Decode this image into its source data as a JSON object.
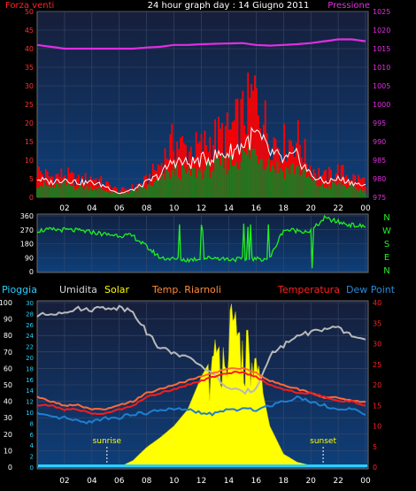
{
  "header": {
    "title": "24 hour graph day : 14 Giugno 2011",
    "left_label": "Forza venti",
    "right_label": "Pressione"
  },
  "colors": {
    "background": "#000000",
    "plot_top": "#1a2a55",
    "plot_bottom": "#0e3f7a",
    "grid": "#3a4a6a",
    "wind_gust": "#ff0000",
    "wind_avg": "#1f7a1f",
    "wind_line": "#ffffff",
    "pressure": "#e02ee0",
    "direction": "#22ee22",
    "rain_label": "#2ad0ff",
    "humidity": "#b8b8b8",
    "solar": "#ffff00",
    "riarnoli": "#ff6a3a",
    "temperature": "#ff1a1a",
    "dewpoint": "#1e7fd0"
  },
  "chart_data": [
    {
      "type": "area",
      "name": "wind_pressure",
      "x_ticks": [
        "02",
        "04",
        "06",
        "08",
        "10",
        "12",
        "14",
        "16",
        "18",
        "20",
        "22",
        "00"
      ],
      "left_ticks": [
        "0",
        "5",
        "10",
        "15",
        "20",
        "25",
        "30",
        "35",
        "40",
        "45",
        "50"
      ],
      "right_ticks": [
        "975",
        "980",
        "985",
        "990",
        "995",
        "1000",
        "1005",
        "1010",
        "1015",
        "1020",
        "1025"
      ],
      "left_ylim": [
        0,
        50
      ],
      "right_ylim": [
        975,
        1025
      ],
      "hours": [
        0,
        1,
        2,
        3,
        4,
        5,
        6,
        7,
        8,
        9,
        10,
        11,
        12,
        13,
        14,
        15,
        16,
        17,
        18,
        19,
        20,
        21,
        22,
        23,
        24
      ],
      "series": [
        {
          "key": "gust",
          "values": [
            8,
            6,
            7,
            5,
            6,
            4,
            2,
            3,
            5,
            10,
            17,
            14,
            15,
            18,
            19,
            24,
            31,
            18,
            16,
            18,
            9,
            6,
            8,
            6,
            5
          ]
        },
        {
          "key": "avg",
          "values": [
            4,
            3,
            4,
            3,
            3,
            2,
            1,
            2,
            3,
            5,
            8,
            7,
            8,
            9,
            10,
            12,
            14,
            10,
            8,
            9,
            5,
            3,
            4,
            3,
            2
          ]
        },
        {
          "key": "line",
          "values": [
            5,
            4,
            5,
            4,
            4,
            3,
            1,
            2,
            4,
            6,
            10,
            9,
            10,
            11,
            12,
            14,
            17,
            12,
            10,
            11,
            6,
            4,
            5,
            4,
            3
          ]
        },
        {
          "key": "pressure",
          "values": [
            1016,
            1015.5,
            1015,
            1015,
            1015,
            1015,
            1015,
            1015,
            1015.3,
            1015.5,
            1016,
            1016,
            1016.2,
            1016.3,
            1016.4,
            1016.5,
            1016,
            1015.8,
            1016,
            1016.2,
            1016.5,
            1017,
            1017.5,
            1017.5,
            1017
          ]
        }
      ]
    },
    {
      "type": "line",
      "name": "wind_direction",
      "x_ticks": [
        "02",
        "04",
        "06",
        "08",
        "10",
        "12",
        "14",
        "16",
        "18",
        "20",
        "22",
        "00"
      ],
      "y_ticks": [
        "360",
        "270",
        "180",
        "90",
        "0"
      ],
      "right_labels": [
        "N",
        "W",
        "S",
        "E",
        "N"
      ],
      "ylim": [
        0,
        360
      ],
      "hours": [
        0,
        1,
        2,
        3,
        4,
        5,
        6,
        7,
        8,
        9,
        10,
        11,
        12,
        13,
        14,
        15,
        16,
        17,
        18,
        19,
        20,
        21,
        22,
        23,
        24
      ],
      "values": [
        265,
        270,
        270,
        265,
        255,
        240,
        235,
        230,
        160,
        90,
        80,
        75,
        85,
        90,
        80,
        80,
        80,
        85,
        270,
        265,
        260,
        345,
        320,
        300,
        290
      ]
    },
    {
      "type": "area",
      "name": "temp_humidity_solar",
      "legend": [
        "Pioggia",
        "Umidita",
        "Solar",
        "Temp. Riarnoli",
        "Temperatura",
        "Dew Point"
      ],
      "x_ticks": [
        "02",
        "04",
        "06",
        "08",
        "10",
        "12",
        "14",
        "16",
        "18",
        "20",
        "22",
        "00"
      ],
      "left_ticks": [
        "0",
        "10",
        "20",
        "30",
        "40",
        "50",
        "60",
        "70",
        "80",
        "90",
        "100"
      ],
      "mid_ticks": [
        "0",
        "2",
        "4",
        "6",
        "8",
        "10",
        "12",
        "14",
        "16",
        "18",
        "20",
        "22",
        "24",
        "26",
        "28",
        "30"
      ],
      "right_ticks": [
        "0",
        "5",
        "10",
        "15",
        "20",
        "25",
        "30",
        "35",
        "40"
      ],
      "annotations": [
        "sunrise",
        "sunset"
      ],
      "hours": [
        0,
        1,
        2,
        3,
        4,
        5,
        6,
        7,
        8,
        9,
        10,
        11,
        12,
        13,
        14,
        15,
        16,
        17,
        18,
        19,
        20,
        21,
        22,
        23,
        24
      ],
      "series": [
        {
          "key": "humidity",
          "values": [
            92,
            93,
            95,
            96,
            96,
            97,
            97,
            95,
            82,
            72,
            70,
            66,
            62,
            55,
            48,
            45,
            48,
            68,
            74,
            80,
            82,
            84,
            84,
            80,
            77
          ]
        },
        {
          "key": "solar",
          "values": [
            0,
            0,
            0,
            0,
            0,
            0,
            0,
            4,
            12,
            18,
            25,
            35,
            55,
            70,
            90,
            80,
            65,
            25,
            8,
            3,
            1,
            0,
            0,
            0,
            0
          ]
        },
        {
          "key": "riarnoli",
          "values": [
            17,
            16,
            15,
            15,
            14,
            14,
            15,
            16,
            18,
            19,
            20,
            21,
            22,
            23,
            24,
            24,
            23,
            21,
            20,
            19,
            18,
            17,
            17,
            16,
            16
          ]
        },
        {
          "key": "temperature",
          "values": [
            15,
            15,
            14,
            14,
            13,
            13,
            14,
            15,
            17,
            18,
            19,
            20,
            21,
            22,
            23,
            23,
            22,
            20,
            19,
            18,
            18,
            17,
            16,
            16,
            15
          ]
        },
        {
          "key": "dewpoint",
          "values": [
            13,
            12,
            12,
            11,
            11,
            12,
            12,
            13,
            13,
            14,
            14,
            14,
            13,
            13,
            14,
            14,
            14,
            15,
            16,
            17,
            16,
            15,
            14,
            14,
            13
          ]
        }
      ]
    }
  ]
}
